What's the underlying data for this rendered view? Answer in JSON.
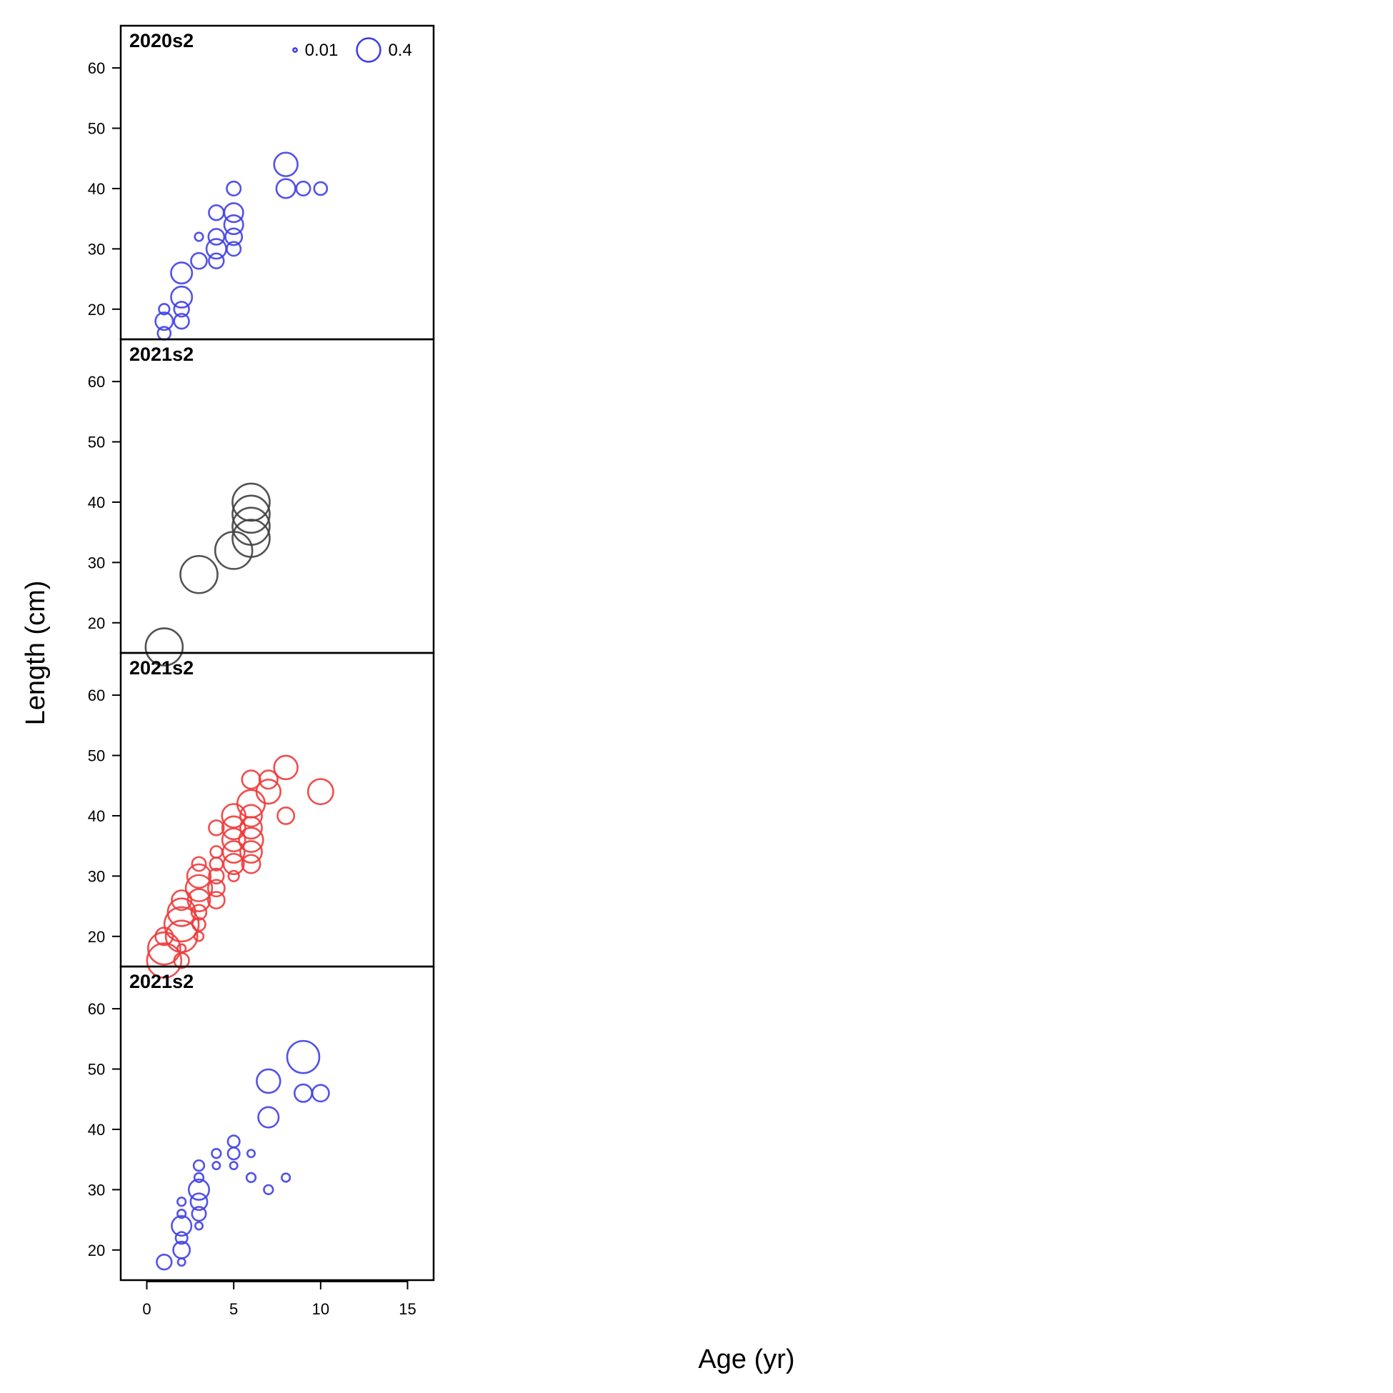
{
  "chart_data": {
    "type": "scatter",
    "subtype": "bubble",
    "xlabel": "Age (yr)",
    "ylabel": "Length (cm)",
    "xlim": [
      -1.5,
      16.5
    ],
    "ylim": [
      15,
      67
    ],
    "x_ticks": [
      0,
      5,
      10,
      15
    ],
    "y_ticks": [
      20,
      30,
      40,
      50,
      60
    ],
    "grid": false,
    "legend": {
      "placement": "top-right of first panel",
      "entries": [
        {
          "label": "0.01",
          "value": 0.01
        },
        {
          "label": "0.4",
          "value": 0.4
        }
      ],
      "color": "#4040e6"
    },
    "panels": [
      {
        "title": "2020s2",
        "color": "#4040e6",
        "points": [
          {
            "x": 1,
            "y": 16,
            "size": 0.12
          },
          {
            "x": 1,
            "y": 18,
            "size": 0.22
          },
          {
            "x": 1,
            "y": 20,
            "size": 0.08
          },
          {
            "x": 2,
            "y": 18,
            "size": 0.16
          },
          {
            "x": 2,
            "y": 20,
            "size": 0.16
          },
          {
            "x": 2,
            "y": 22,
            "size": 0.32
          },
          {
            "x": 2,
            "y": 26,
            "size": 0.32
          },
          {
            "x": 3,
            "y": 28,
            "size": 0.18
          },
          {
            "x": 3,
            "y": 32,
            "size": 0.05
          },
          {
            "x": 4,
            "y": 28,
            "size": 0.16
          },
          {
            "x": 4,
            "y": 30,
            "size": 0.28
          },
          {
            "x": 4,
            "y": 32,
            "size": 0.18
          },
          {
            "x": 4,
            "y": 36,
            "size": 0.16
          },
          {
            "x": 5,
            "y": 30,
            "size": 0.14
          },
          {
            "x": 5,
            "y": 32,
            "size": 0.2
          },
          {
            "x": 5,
            "y": 34,
            "size": 0.26
          },
          {
            "x": 5,
            "y": 36,
            "size": 0.26
          },
          {
            "x": 5,
            "y": 40,
            "size": 0.14
          },
          {
            "x": 8,
            "y": 40,
            "size": 0.26
          },
          {
            "x": 8,
            "y": 44,
            "size": 0.4
          },
          {
            "x": 9,
            "y": 40,
            "size": 0.14
          },
          {
            "x": 10,
            "y": 40,
            "size": 0.12
          }
        ]
      },
      {
        "title": "2021s2",
        "color": "#404040",
        "points": [
          {
            "x": 1,
            "y": 16,
            "size": 1.0
          },
          {
            "x": 3,
            "y": 28,
            "size": 1.0
          },
          {
            "x": 5,
            "y": 32,
            "size": 1.0
          },
          {
            "x": 6,
            "y": 34,
            "size": 1.0
          },
          {
            "x": 6,
            "y": 36,
            "size": 1.0
          },
          {
            "x": 6,
            "y": 38,
            "size": 1.0
          },
          {
            "x": 6,
            "y": 40,
            "size": 1.0
          }
        ]
      },
      {
        "title": "2021s2",
        "color": "#ee3b3b",
        "points": [
          {
            "x": 1,
            "y": 16,
            "size": 0.85
          },
          {
            "x": 1,
            "y": 18,
            "size": 0.75
          },
          {
            "x": 1,
            "y": 20,
            "size": 0.22
          },
          {
            "x": 2,
            "y": 16,
            "size": 0.16
          },
          {
            "x": 2,
            "y": 18,
            "size": 0.05
          },
          {
            "x": 2,
            "y": 20,
            "size": 0.72
          },
          {
            "x": 2,
            "y": 22,
            "size": 0.85
          },
          {
            "x": 2,
            "y": 24,
            "size": 0.55
          },
          {
            "x": 2,
            "y": 26,
            "size": 0.28
          },
          {
            "x": 3,
            "y": 20,
            "size": 0.06
          },
          {
            "x": 3,
            "y": 22,
            "size": 0.12
          },
          {
            "x": 3,
            "y": 24,
            "size": 0.16
          },
          {
            "x": 3,
            "y": 26,
            "size": 0.36
          },
          {
            "x": 3,
            "y": 28,
            "size": 0.5
          },
          {
            "x": 3,
            "y": 30,
            "size": 0.4
          },
          {
            "x": 3,
            "y": 32,
            "size": 0.14
          },
          {
            "x": 4,
            "y": 26,
            "size": 0.2
          },
          {
            "x": 4,
            "y": 28,
            "size": 0.2
          },
          {
            "x": 4,
            "y": 30,
            "size": 0.16
          },
          {
            "x": 4,
            "y": 32,
            "size": 0.12
          },
          {
            "x": 4,
            "y": 34,
            "size": 0.1
          },
          {
            "x": 4,
            "y": 38,
            "size": 0.16
          },
          {
            "x": 5,
            "y": 30,
            "size": 0.08
          },
          {
            "x": 5,
            "y": 32,
            "size": 0.3
          },
          {
            "x": 5,
            "y": 34,
            "size": 0.34
          },
          {
            "x": 5,
            "y": 36,
            "size": 0.38
          },
          {
            "x": 5,
            "y": 38,
            "size": 0.38
          },
          {
            "x": 5,
            "y": 40,
            "size": 0.4
          },
          {
            "x": 6,
            "y": 32,
            "size": 0.24
          },
          {
            "x": 6,
            "y": 34,
            "size": 0.34
          },
          {
            "x": 6,
            "y": 36,
            "size": 0.42
          },
          {
            "x": 6,
            "y": 38,
            "size": 0.34
          },
          {
            "x": 6,
            "y": 40,
            "size": 0.34
          },
          {
            "x": 6,
            "y": 42,
            "size": 0.55
          },
          {
            "x": 6,
            "y": 46,
            "size": 0.24
          },
          {
            "x": 7,
            "y": 44,
            "size": 0.42
          },
          {
            "x": 7,
            "y": 46,
            "size": 0.24
          },
          {
            "x": 8,
            "y": 40,
            "size": 0.2
          },
          {
            "x": 8,
            "y": 48,
            "size": 0.4
          },
          {
            "x": 10,
            "y": 44,
            "size": 0.46
          }
        ]
      },
      {
        "title": "2021s2",
        "color": "#4040e6",
        "points": [
          {
            "x": 1,
            "y": 18,
            "size": 0.16
          },
          {
            "x": 2,
            "y": 18,
            "size": 0.04
          },
          {
            "x": 2,
            "y": 20,
            "size": 0.2
          },
          {
            "x": 2,
            "y": 22,
            "size": 0.1
          },
          {
            "x": 2,
            "y": 24,
            "size": 0.28
          },
          {
            "x": 2,
            "y": 26,
            "size": 0.05
          },
          {
            "x": 2,
            "y": 28,
            "size": 0.05
          },
          {
            "x": 3,
            "y": 24,
            "size": 0.04
          },
          {
            "x": 3,
            "y": 26,
            "size": 0.14
          },
          {
            "x": 3,
            "y": 28,
            "size": 0.2
          },
          {
            "x": 3,
            "y": 30,
            "size": 0.3
          },
          {
            "x": 3,
            "y": 32,
            "size": 0.06
          },
          {
            "x": 3,
            "y": 34,
            "size": 0.08
          },
          {
            "x": 4,
            "y": 34,
            "size": 0.04
          },
          {
            "x": 4,
            "y": 36,
            "size": 0.06
          },
          {
            "x": 5,
            "y": 34,
            "size": 0.04
          },
          {
            "x": 5,
            "y": 36,
            "size": 0.1
          },
          {
            "x": 5,
            "y": 38,
            "size": 0.1
          },
          {
            "x": 6,
            "y": 32,
            "size": 0.06
          },
          {
            "x": 6,
            "y": 36,
            "size": 0.04
          },
          {
            "x": 7,
            "y": 30,
            "size": 0.06
          },
          {
            "x": 7,
            "y": 42,
            "size": 0.3
          },
          {
            "x": 7,
            "y": 48,
            "size": 0.4
          },
          {
            "x": 8,
            "y": 32,
            "size": 0.05
          },
          {
            "x": 9,
            "y": 46,
            "size": 0.22
          },
          {
            "x": 9,
            "y": 52,
            "size": 0.75
          },
          {
            "x": 10,
            "y": 46,
            "size": 0.2
          }
        ]
      }
    ]
  }
}
